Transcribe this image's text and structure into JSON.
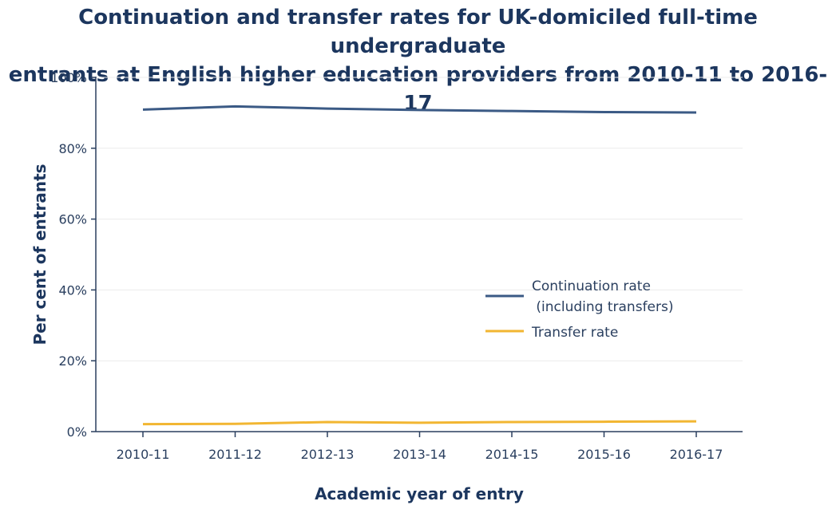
{
  "chart_data": {
    "type": "line",
    "title_line1": "Continuation and transfer rates for UK-domiciled full-time undergraduate",
    "title_line2": "entrants at English higher education providers from 2010-11 to 2016-17",
    "xlabel": "Academic year of entry",
    "ylabel": "Per cent of entrants",
    "categories": [
      "2010-11",
      "2011-12",
      "2012-13",
      "2013-14",
      "2014-15",
      "2015-16",
      "2016-17"
    ],
    "ylim": [
      0,
      100
    ],
    "yticks": [
      0,
      20,
      40,
      60,
      80,
      100
    ],
    "ytick_labels": [
      "0%",
      "20%",
      "40%",
      "60%",
      "80%",
      "100%"
    ],
    "grid": true,
    "legend_position": "right",
    "series": [
      {
        "name": "Continuation rate",
        "legend_line2": " (including transfers)",
        "color": "#3b5a85",
        "values": [
          90.9,
          91.8,
          91.2,
          90.8,
          90.5,
          90.2,
          90.1
        ]
      },
      {
        "name": "Transfer rate",
        "color": "#f2b632",
        "values": [
          2.1,
          2.2,
          2.7,
          2.5,
          2.7,
          2.8,
          2.9
        ]
      }
    ]
  }
}
